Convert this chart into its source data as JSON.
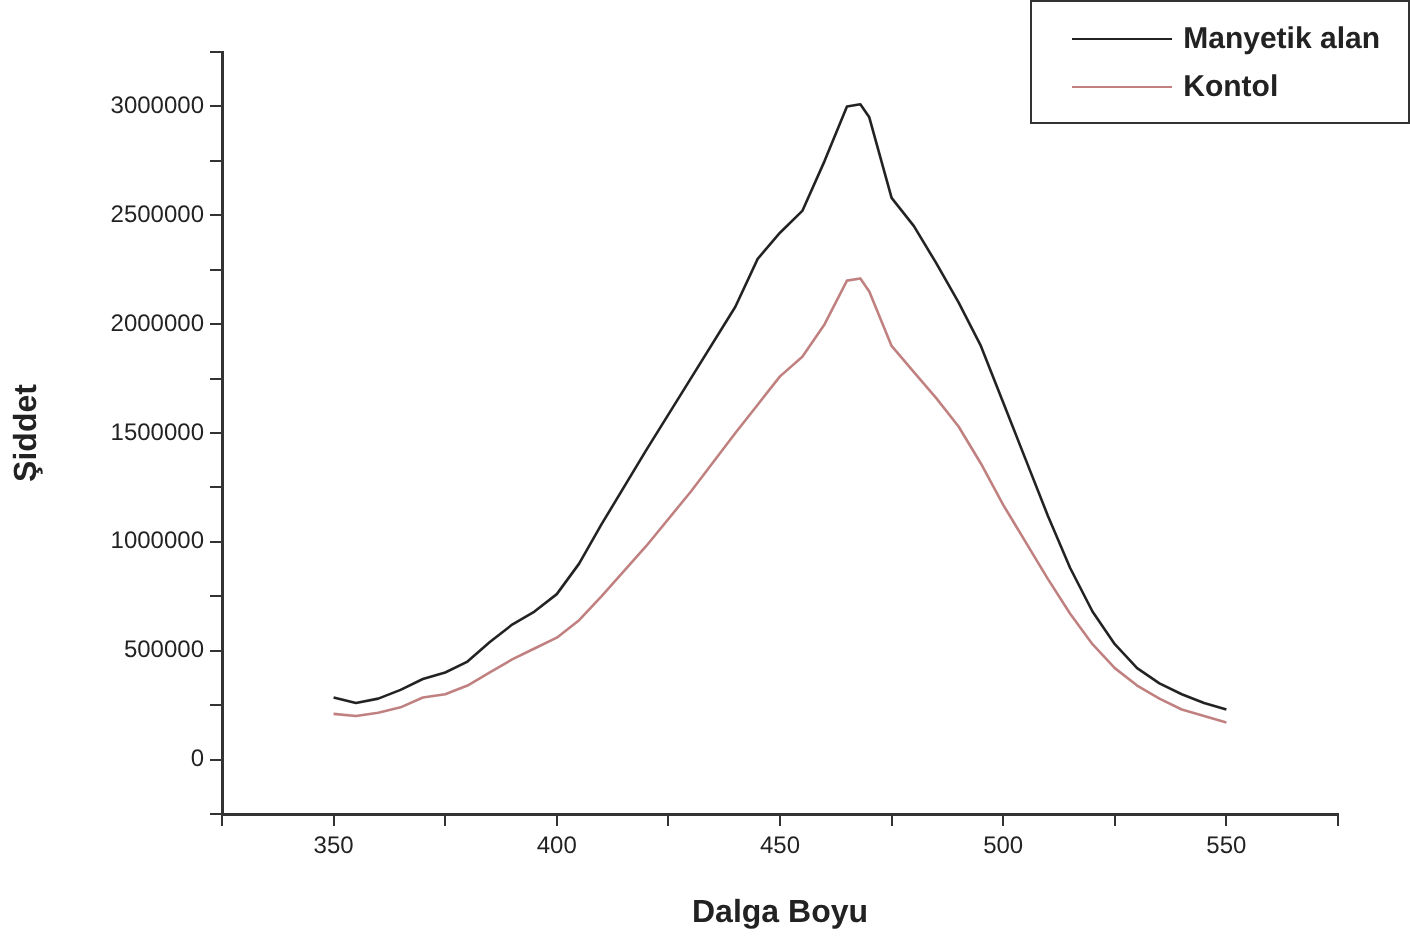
{
  "chart_data": {
    "type": "line",
    "xlabel": "Dalga Boyu",
    "ylabel": "Şiddet",
    "xlim": [
      325,
      575
    ],
    "xticks": [
      {
        "value": 325,
        "label": null
      },
      350,
      {
        "value": 375,
        "label": null
      },
      400,
      {
        "value": 425,
        "label": null
      },
      450,
      {
        "value": 475,
        "label": null
      },
      500,
      {
        "value": 525,
        "label": null
      },
      550,
      {
        "value": 575,
        "label": null
      }
    ],
    "ylim": [
      -250000,
      3250000
    ],
    "yticks": [
      {
        "value": -250000,
        "label": null
      },
      0,
      {
        "value": 250000,
        "label": null
      },
      500000,
      {
        "value": 750000,
        "label": null
      },
      1000000,
      {
        "value": 1250000,
        "label": null
      },
      1500000,
      {
        "value": 1750000,
        "label": null
      },
      2000000,
      {
        "value": 2250000,
        "label": null
      },
      2500000,
      {
        "value": 2750000,
        "label": null
      },
      3000000,
      {
        "value": 3250000,
        "label": null
      }
    ],
    "x": [
      350,
      355,
      360,
      365,
      370,
      375,
      380,
      385,
      390,
      395,
      400,
      405,
      410,
      420,
      430,
      440,
      445,
      450,
      455,
      460,
      465,
      468,
      470,
      475,
      480,
      485,
      490,
      495,
      500,
      505,
      510,
      515,
      520,
      525,
      530,
      535,
      540,
      545,
      550
    ],
    "series": [
      {
        "name": "Manyetik alan",
        "color": "#222222",
        "values": [
          285000,
          260000,
          280000,
          320000,
          370000,
          400000,
          450000,
          540000,
          620000,
          680000,
          760000,
          900000,
          1080000,
          1420000,
          1750000,
          2080000,
          2300000,
          2420000,
          2520000,
          2750000,
          3000000,
          3010000,
          2950000,
          2580000,
          2450000,
          2280000,
          2100000,
          1900000,
          1640000,
          1380000,
          1120000,
          880000,
          680000,
          530000,
          420000,
          350000,
          300000,
          260000,
          230000
        ]
      },
      {
        "name": "Kontol",
        "color": "#c08080",
        "values": [
          210000,
          200000,
          215000,
          240000,
          285000,
          300000,
          340000,
          400000,
          460000,
          510000,
          560000,
          640000,
          750000,
          980000,
          1230000,
          1500000,
          1630000,
          1760000,
          1850000,
          2000000,
          2200000,
          2210000,
          2150000,
          1900000,
          1780000,
          1660000,
          1530000,
          1360000,
          1170000,
          1000000,
          830000,
          670000,
          530000,
          420000,
          340000,
          280000,
          230000,
          200000,
          170000
        ]
      }
    ],
    "legend": "top right",
    "grid": false,
    "marker": "none",
    "line_style": "solid"
  }
}
